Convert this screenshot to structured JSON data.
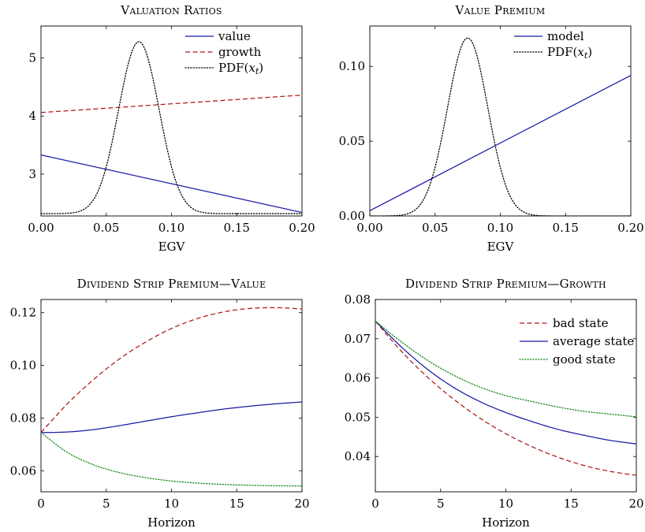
{
  "colors": {
    "value": "#1a1aa6",
    "growth": "#b01818",
    "good": "#1a8a1a",
    "pdf": "#000000",
    "axis": "#000000"
  },
  "chart_data": [
    {
      "type": "line",
      "title": "Valuation Ratios",
      "xlabel": "EGV",
      "ylabel": "",
      "xlim": [
        0,
        0.2
      ],
      "ylim": [
        2.28,
        5.55
      ],
      "xticks": [
        0.0,
        0.05,
        0.1,
        0.15,
        0.2
      ],
      "xtick_labels": [
        "0.00",
        "0.05",
        "0.10",
        "0.15",
        "0.20"
      ],
      "yticks": [
        3,
        4,
        5
      ],
      "ytick_labels": [
        "3",
        "4",
        "5"
      ],
      "legend_position": "top-right",
      "grid": false,
      "series": [
        {
          "name": "value",
          "style": "solid",
          "color_key": "value",
          "x": [
            0,
            0.2
          ],
          "y": [
            3.33,
            2.34
          ]
        },
        {
          "name": "growth",
          "style": "dashed",
          "color_key": "growth",
          "x": [
            0,
            0.2
          ],
          "y": [
            4.06,
            4.36
          ]
        },
        {
          "name": "PDF(x_t)",
          "legend_main": "PDF(",
          "legend_var": "x",
          "legend_sub": "t",
          "legend_end": ")",
          "style": "dotted",
          "color_key": "pdf",
          "pdf": {
            "mean": 0.075,
            "sd": 0.0155,
            "base": 2.32,
            "peak": 5.28
          }
        }
      ]
    },
    {
      "type": "line",
      "title": "Value Premium",
      "xlabel": "EGV",
      "ylabel": "",
      "xlim": [
        0,
        0.2
      ],
      "ylim": [
        0,
        0.127
      ],
      "xticks": [
        0.0,
        0.05,
        0.1,
        0.15,
        0.2
      ],
      "xtick_labels": [
        "0.00",
        "0.05",
        "0.10",
        "0.15",
        "0.20"
      ],
      "yticks": [
        0,
        0.05,
        0.1
      ],
      "ytick_labels": [
        "0.00",
        "0.05",
        "0.10"
      ],
      "legend_position": "top-right",
      "grid": false,
      "series": [
        {
          "name": "model",
          "style": "solid",
          "color_key": "value",
          "x": [
            0,
            0.2
          ],
          "y": [
            0.0035,
            0.094
          ]
        },
        {
          "name": "PDF(x_t)",
          "legend_main": "PDF(",
          "legend_var": "x",
          "legend_sub": "t",
          "legend_end": ")",
          "style": "dotted",
          "color_key": "pdf",
          "pdf": {
            "mean": 0.075,
            "sd": 0.0155,
            "base": 0.0,
            "peak": 0.119
          }
        }
      ]
    },
    {
      "type": "line",
      "title": "Dividend Strip Premium—Value",
      "xlabel": "Horizon",
      "ylabel": "",
      "xlim": [
        0,
        20
      ],
      "ylim": [
        0.052,
        0.125
      ],
      "xticks": [
        0,
        5,
        10,
        15,
        20
      ],
      "xtick_labels": [
        "0",
        "5",
        "10",
        "15",
        "20"
      ],
      "yticks": [
        0.06,
        0.08,
        0.1,
        0.12
      ],
      "ytick_labels": [
        "0.06",
        "0.08",
        "0.10",
        "0.12"
      ],
      "grid": false,
      "series": [
        {
          "name": "",
          "style": "dashed",
          "color_key": "growth",
          "x": [
            0,
            2,
            4,
            6,
            8,
            10,
            12,
            14,
            16,
            18,
            20
          ],
          "y": [
            0.0745,
            0.0853,
            0.0945,
            0.1024,
            0.1088,
            0.114,
            0.1178,
            0.1203,
            0.1216,
            0.1219,
            0.1214
          ]
        },
        {
          "name": "",
          "style": "solid",
          "color_key": "value",
          "x": [
            0,
            2,
            4,
            6,
            8,
            10,
            12,
            14,
            16,
            18,
            20
          ],
          "y": [
            0.0745,
            0.0747,
            0.0756,
            0.0771,
            0.0788,
            0.0805,
            0.082,
            0.0834,
            0.0845,
            0.0854,
            0.0861
          ]
        },
        {
          "name": "",
          "style": "dotted",
          "color_key": "good",
          "x": [
            0,
            2,
            4,
            6,
            8,
            10,
            12,
            14,
            16,
            18,
            20
          ],
          "y": [
            0.0745,
            0.067,
            0.0623,
            0.0593,
            0.0574,
            0.0561,
            0.0553,
            0.0548,
            0.0545,
            0.0543,
            0.0542
          ]
        }
      ]
    },
    {
      "type": "line",
      "title": "Dividend Strip Premium—Growth",
      "xlabel": "Horizon",
      "ylabel": "",
      "xlim": [
        0,
        20
      ],
      "ylim": [
        0.031,
        0.08
      ],
      "xticks": [
        0,
        5,
        10,
        15,
        20
      ],
      "xtick_labels": [
        "0",
        "5",
        "10",
        "15",
        "20"
      ],
      "yticks": [
        0.04,
        0.05,
        0.06,
        0.07,
        0.08
      ],
      "ytick_labels": [
        "0.04",
        "0.05",
        "0.06",
        "0.07",
        "0.08"
      ],
      "legend_position": "top-right",
      "grid": false,
      "series": [
        {
          "name": "bad state",
          "style": "dashed",
          "color_key": "growth",
          "x": [
            0,
            2,
            4,
            6,
            8,
            10,
            12,
            14,
            16,
            18,
            20
          ],
          "y": [
            0.0745,
            0.0668,
            0.0602,
            0.0546,
            0.0498,
            0.0458,
            0.0425,
            0.0398,
            0.0377,
            0.0362,
            0.0352
          ]
        },
        {
          "name": "average state",
          "style": "solid",
          "color_key": "value",
          "x": [
            0,
            2,
            4,
            6,
            8,
            10,
            12,
            14,
            16,
            18,
            20
          ],
          "y": [
            0.0745,
            0.0679,
            0.0622,
            0.0576,
            0.054,
            0.0512,
            0.0489,
            0.0469,
            0.0454,
            0.0441,
            0.0432
          ]
        },
        {
          "name": "good state",
          "style": "dotted",
          "color_key": "good",
          "x": [
            0,
            2,
            4,
            6,
            8,
            10,
            12,
            14,
            16,
            18,
            20
          ],
          "y": [
            0.0745,
            0.0692,
            0.0645,
            0.0607,
            0.0577,
            0.0555,
            0.054,
            0.0526,
            0.0515,
            0.0508,
            0.0501
          ]
        }
      ]
    }
  ]
}
